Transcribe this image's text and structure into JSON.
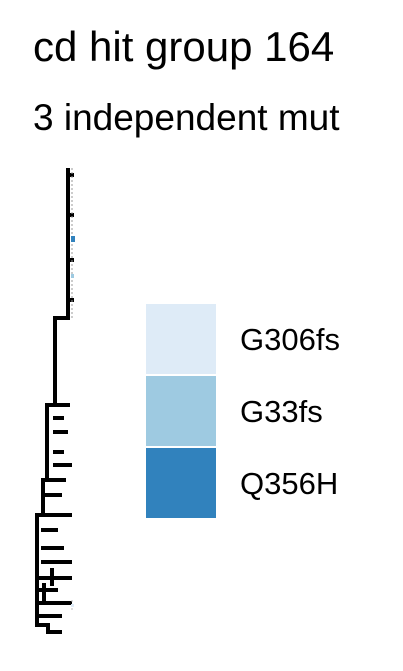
{
  "header": {
    "title": "cd hit group 164",
    "subtitle": "3 independent mut"
  },
  "legend": {
    "items": [
      {
        "label": "G306fs",
        "color": "#deebf7"
      },
      {
        "label": "G33fs",
        "color": "#9ecae1"
      },
      {
        "label": "Q356H",
        "color": "#3182bd"
      }
    ]
  },
  "tree": {
    "line_color": "#000000",
    "tip_marks": [
      {
        "color": "#3182bd"
      },
      {
        "color": "#9ecae1"
      },
      {
        "color": "#deebf7"
      }
    ]
  }
}
